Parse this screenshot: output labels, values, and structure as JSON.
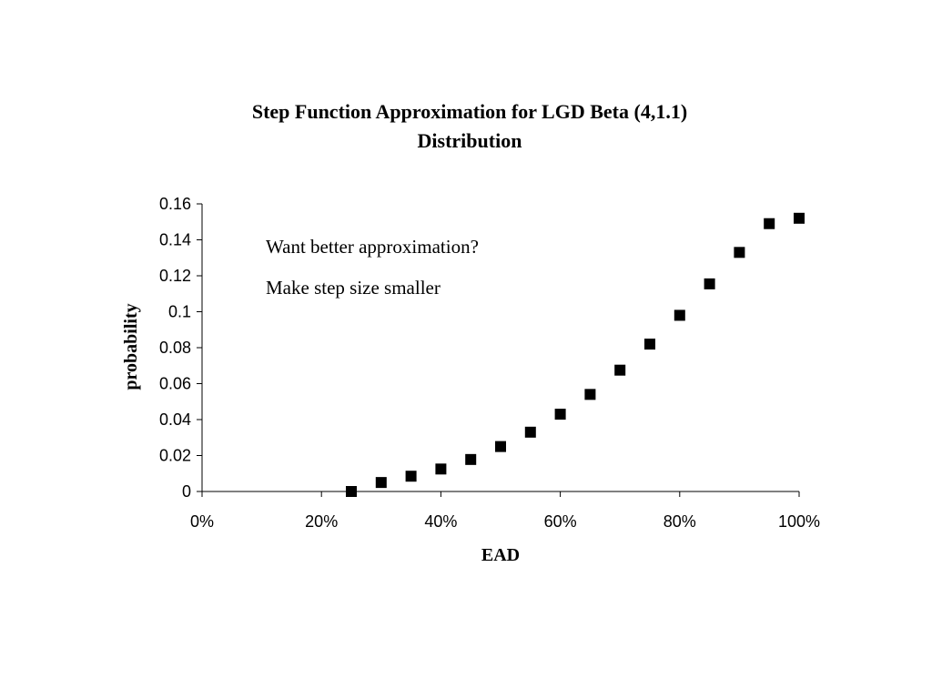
{
  "chart_data": {
    "type": "scatter",
    "title": "Step Function Approximation for LGD Beta (4,1.1)",
    "title_line2": "Distribution",
    "xlabel": "EAD",
    "ylabel": "probability",
    "xlim": [
      0,
      1
    ],
    "ylim": [
      0,
      0.16
    ],
    "x_ticks": [
      0,
      0.2,
      0.4,
      0.6,
      0.8,
      1.0
    ],
    "x_tick_labels": [
      "0%",
      "20%",
      "40%",
      "60%",
      "80%",
      "100%"
    ],
    "y_ticks": [
      0,
      0.02,
      0.04,
      0.06,
      0.08,
      0.1,
      0.12,
      0.14,
      0.16
    ],
    "y_tick_labels": [
      "0",
      "0.02",
      "0.04",
      "0.06",
      "0.08",
      "0.1",
      "0.12",
      "0.14",
      "0.16"
    ],
    "grid": false,
    "legend": "none",
    "marker": "square",
    "marker_color": "#000000",
    "annotations": [
      "Want better approximation?",
      "Make step size smaller"
    ],
    "x": [
      0.25,
      0.3,
      0.35,
      0.4,
      0.45,
      0.5,
      0.55,
      0.6,
      0.65,
      0.7,
      0.75,
      0.8,
      0.85,
      0.9,
      0.95,
      1.0
    ],
    "y": [
      0.0,
      0.005,
      0.0085,
      0.0125,
      0.0178,
      0.025,
      0.033,
      0.043,
      0.054,
      0.0675,
      0.082,
      0.098,
      0.1155,
      0.133,
      0.149,
      0.152
    ]
  }
}
